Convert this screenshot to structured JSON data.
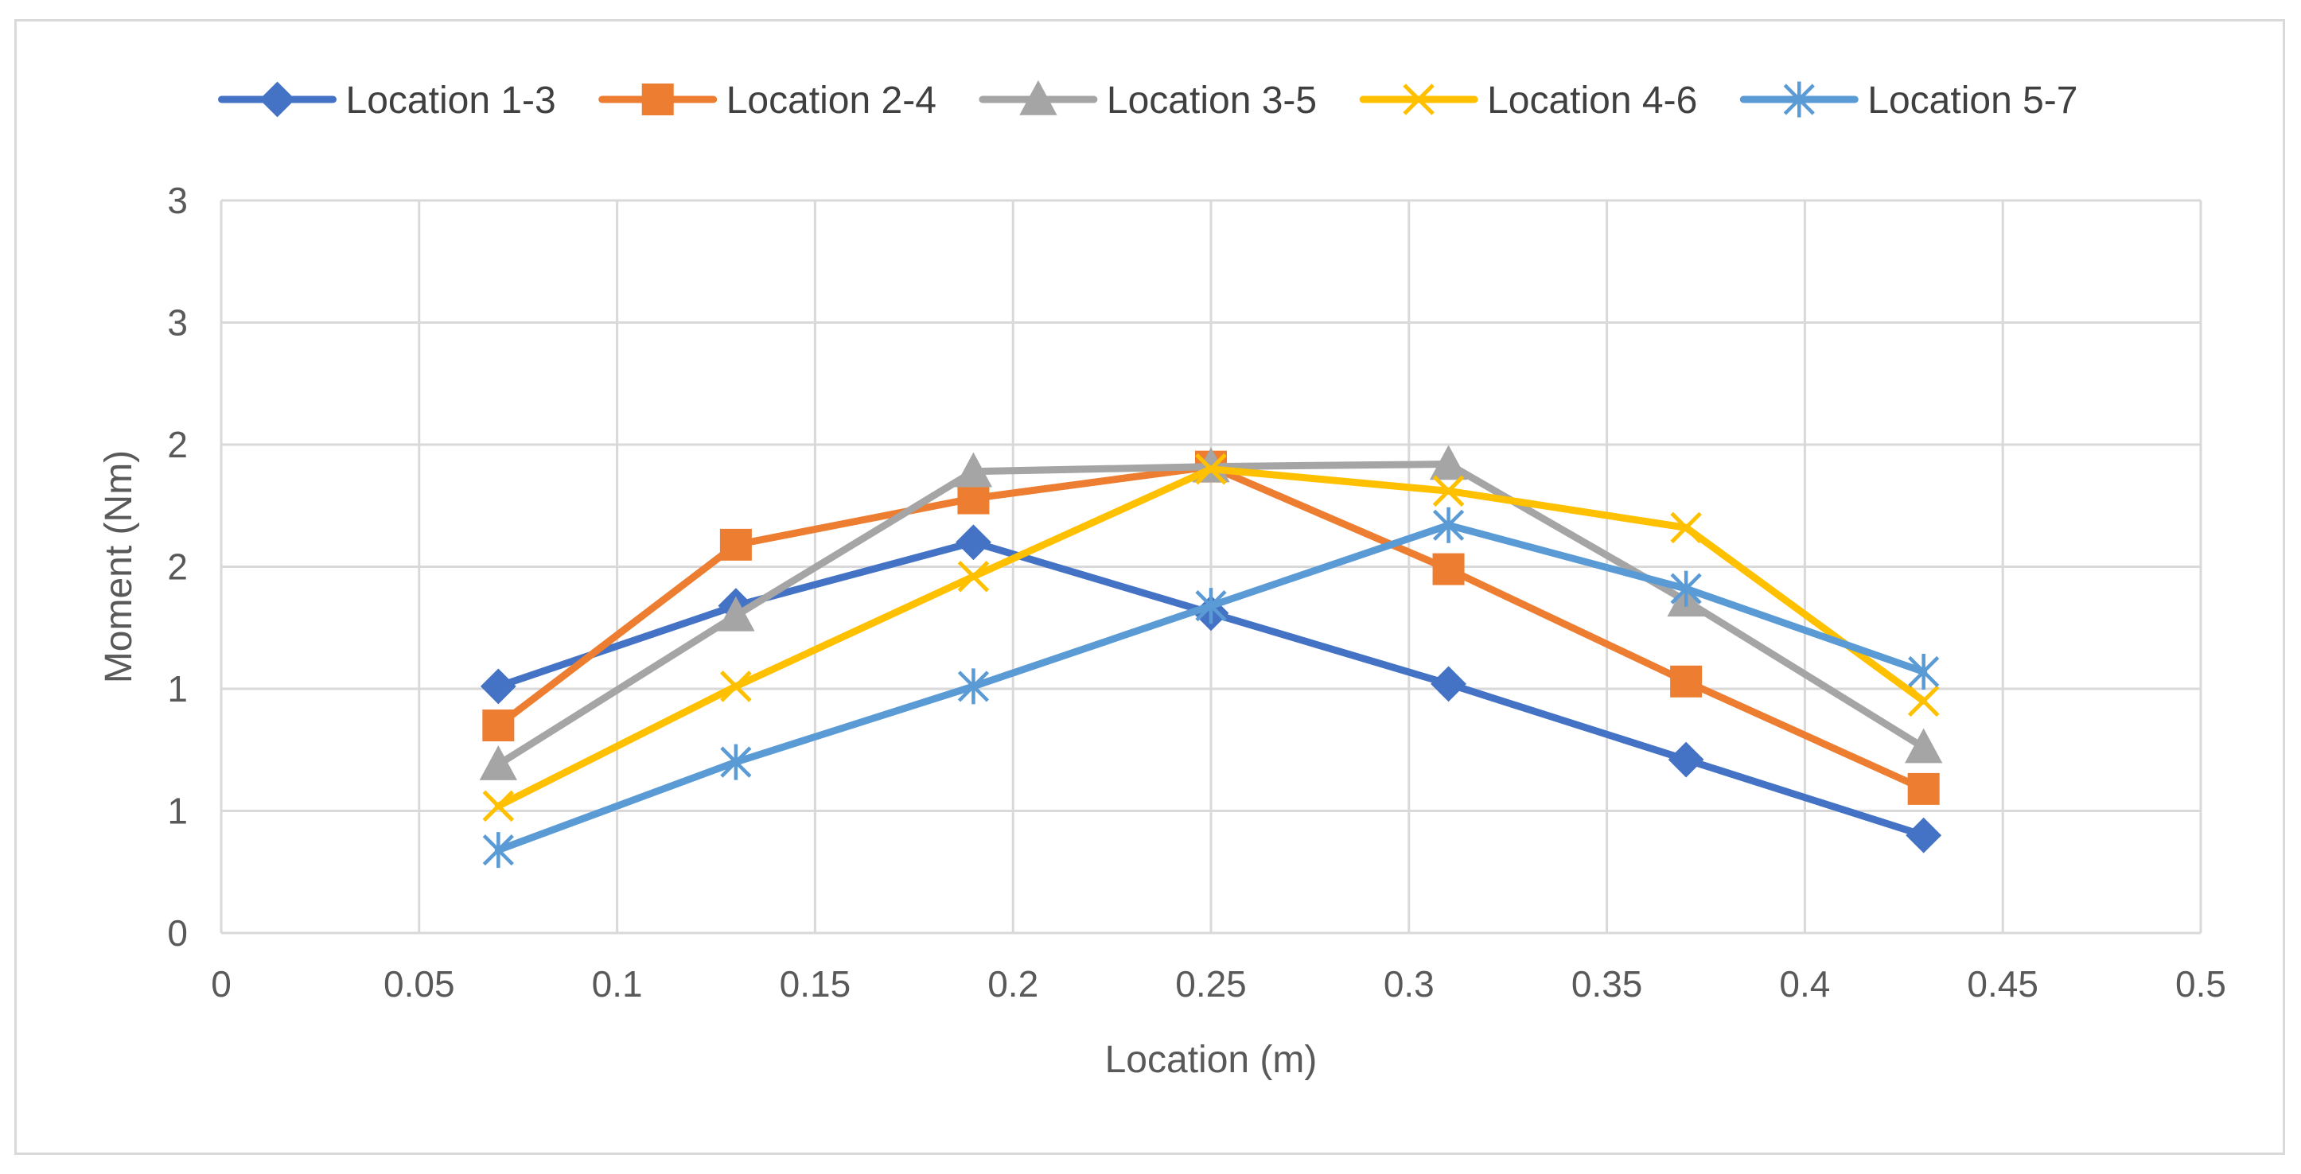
{
  "chart_data": {
    "type": "line",
    "title": "",
    "xlabel": "Location (m)",
    "ylabel": "Moment (Nm)",
    "xlim": [
      0,
      0.5
    ],
    "ylim": [
      0,
      3
    ],
    "x_ticks": [
      0,
      0.05,
      0.1,
      0.15,
      0.2,
      0.25,
      0.3,
      0.35,
      0.4,
      0.45,
      0.5
    ],
    "x_tick_labels": [
      "0",
      "0.05",
      "0.1",
      "0.15",
      "0.2",
      "0.25",
      "0.3",
      "0.35",
      "0.4",
      "0.45",
      "0.5"
    ],
    "y_ticks": [
      0,
      0.5,
      1,
      1.5,
      2,
      2.5,
      3
    ],
    "y_tick_labels": [
      "0",
      "1",
      "1",
      "2",
      "2",
      "3",
      "3"
    ],
    "grid": true,
    "legend_position": "top",
    "x": [
      0.07,
      0.13,
      0.19,
      0.25,
      0.31,
      0.37,
      0.43
    ],
    "series": [
      {
        "name": "Location 1-3",
        "color": "#4472C4",
        "marker": "diamond",
        "values": [
          1.01,
          1.34,
          1.6,
          1.31,
          1.02,
          0.71,
          0.4
        ]
      },
      {
        "name": "Location 2-4",
        "color": "#ED7D31",
        "marker": "square",
        "values": [
          0.85,
          1.59,
          1.78,
          1.91,
          1.49,
          1.03,
          0.59
        ]
      },
      {
        "name": "Location 3-5",
        "color": "#A5A5A5",
        "marker": "triangle",
        "values": [
          0.69,
          1.3,
          1.89,
          1.91,
          1.92,
          1.36,
          0.76
        ]
      },
      {
        "name": "Location 4-6",
        "color": "#FFC000",
        "marker": "x",
        "values": [
          0.52,
          1.01,
          1.46,
          1.9,
          1.81,
          1.66,
          0.95
        ]
      },
      {
        "name": "Location 5-7",
        "color": "#5B9BD5",
        "marker": "asterisk",
        "values": [
          0.34,
          0.7,
          1.01,
          1.34,
          1.67,
          1.41,
          1.07
        ]
      }
    ]
  }
}
